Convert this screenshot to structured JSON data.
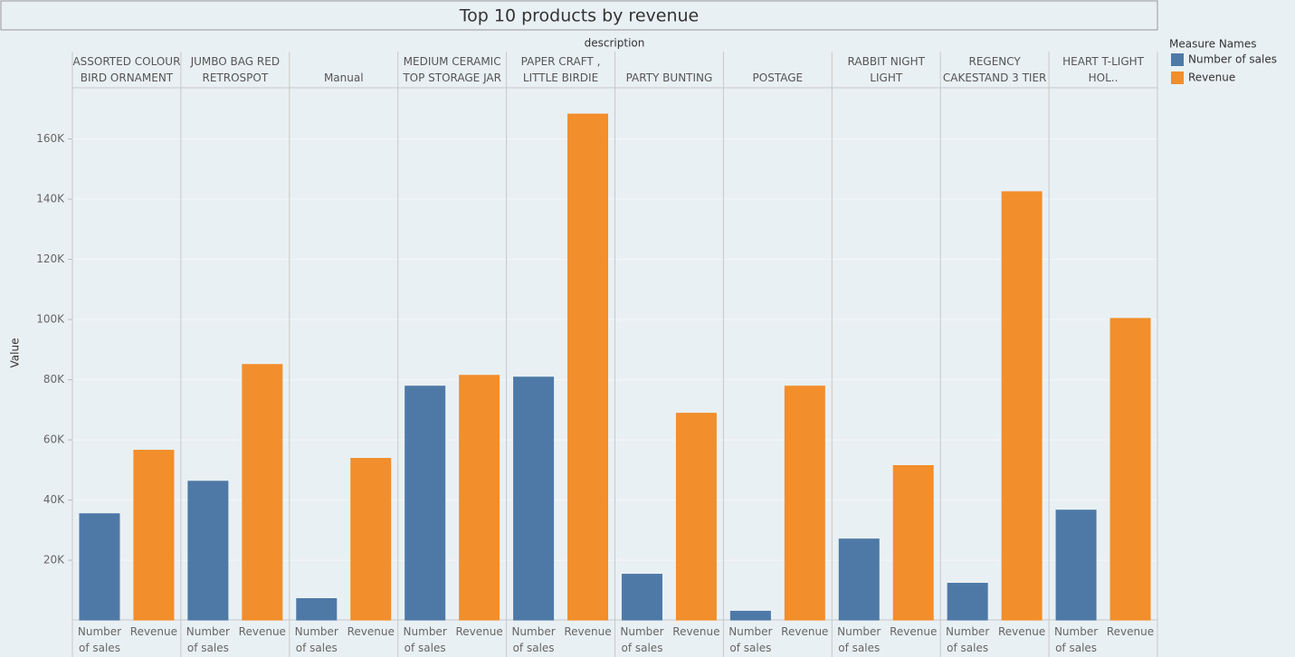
{
  "chart_data": {
    "type": "bar",
    "title": "Top 10 products by revenue",
    "x_label": "description",
    "y_label": "Value",
    "legend_title": "Measure Names",
    "categories": [
      "ASSORTED COLOUR BIRD ORNAMENT",
      "JUMBO BAG RED RETROSPOT",
      "Manual",
      "MEDIUM CERAMIC TOP STORAGE JAR",
      "PAPER CRAFT , LITTLE BIRDIE",
      "PARTY BUNTING",
      "POSTAGE",
      "RABBIT NIGHT LIGHT",
      "REGENCY CAKESTAND 3 TIER",
      "WHITE HANGING HEART T-LIGHT HOL.."
    ],
    "series": [
      {
        "name": "Number of sales",
        "color": "#4e79a7",
        "values": [
          35600,
          46400,
          7400,
          78000,
          81000,
          15500,
          3200,
          27200,
          12500,
          36800
        ]
      },
      {
        "name": "Revenue",
        "color": "#f28e2b",
        "values": [
          56700,
          85200,
          54000,
          81600,
          168400,
          69000,
          78000,
          51600,
          142600,
          100500
        ]
      }
    ],
    "ylim": [
      0,
      177000
    ],
    "yticks": [
      {
        "value": 20000,
        "label": "20K"
      },
      {
        "value": 40000,
        "label": "40K"
      },
      {
        "value": 60000,
        "label": "60K"
      },
      {
        "value": 80000,
        "label": "80K"
      },
      {
        "value": 100000,
        "label": "100K"
      },
      {
        "value": 120000,
        "label": "120K"
      },
      {
        "value": 140000,
        "label": "140K"
      },
      {
        "value": 160000,
        "label": "160K"
      }
    ],
    "grid": true
  }
}
